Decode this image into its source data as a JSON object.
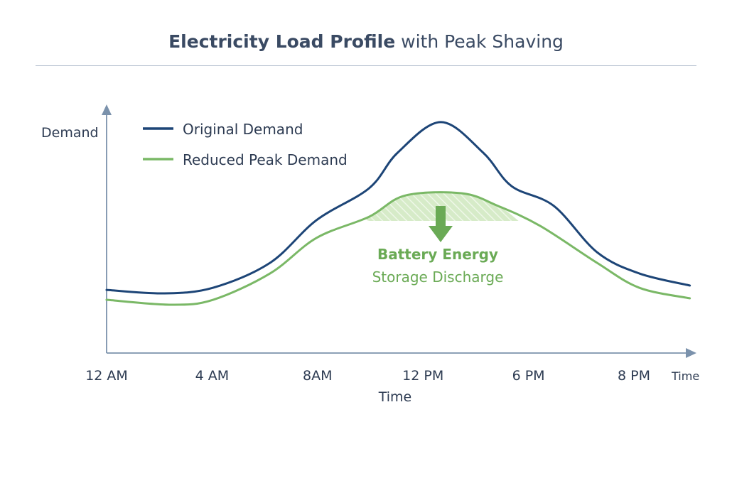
{
  "chart_data": {
    "type": "line",
    "title_bold": "Electricity Load Profile",
    "title_rest": " with Peak Shaving",
    "ylabel": "Demand",
    "xlabel": "Time",
    "x_axis_end_label": "Time",
    "x_ticks": [
      "12 AM",
      "4 AM",
      "8AM",
      "12 PM",
      "6 PM",
      "8 PM"
    ],
    "x_units_note": "x values are positions measured in tick intervals (0 = 12 AM, 1 = 4 AM, ... 5 = 8 PM)",
    "y_scale": "unlabeled relative demand (0-100)",
    "ylim": [
      0,
      100
    ],
    "grid": false,
    "legend_position": "top-left",
    "series": [
      {
        "name": "Original Demand",
        "color": "#1d4577",
        "points": [
          [
            0,
            25.6
          ],
          [
            0.54,
            24.2
          ],
          [
            1.01,
            26.5
          ],
          [
            1.55,
            36.6
          ],
          [
            1.99,
            53.9
          ],
          [
            2.49,
            66.9
          ],
          [
            2.76,
            81.3
          ],
          [
            3.17,
            93.7
          ],
          [
            3.57,
            81.3
          ],
          [
            3.84,
            67.7
          ],
          [
            4.24,
            59.7
          ],
          [
            4.65,
            40.9
          ],
          [
            5.05,
            32.3
          ],
          [
            5.53,
            27.4
          ]
        ]
      },
      {
        "name": "Reduced Peak Demand",
        "color": "#7ab866",
        "points": [
          [
            0,
            21.6
          ],
          [
            0.61,
            19.6
          ],
          [
            1.01,
            21.6
          ],
          [
            1.55,
            32.3
          ],
          [
            1.99,
            46.7
          ],
          [
            2.49,
            55.3
          ],
          [
            2.83,
            63.9
          ],
          [
            3.37,
            64.8
          ],
          [
            3.71,
            59.7
          ],
          [
            4.11,
            51.6
          ],
          [
            4.65,
            36.6
          ],
          [
            5.05,
            26.5
          ],
          [
            5.53,
            22.2
          ]
        ]
      }
    ],
    "annotation": {
      "line1": "Battery Energy",
      "line2": "Storage Discharge",
      "color": "#6aaa55",
      "shaded_region_x": [
        2.49,
        3.84
      ],
      "shaded_region_floor": 53.6
    }
  }
}
